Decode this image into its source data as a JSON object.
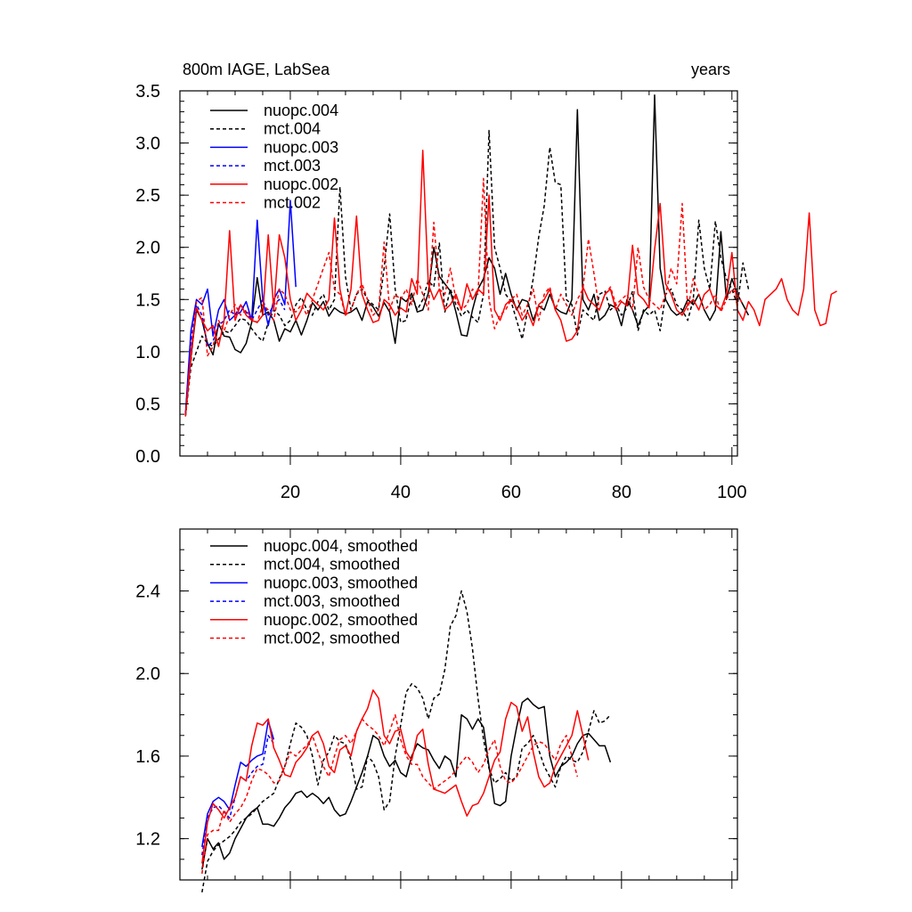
{
  "chart_data": [
    {
      "type": "line",
      "title": "800m IAGE, LabSea",
      "title_right": "years",
      "xlabel": "",
      "ylabel": "",
      "xlim": [
        0,
        101
      ],
      "ylim": [
        0,
        3.5
      ],
      "xticks": [
        20,
        40,
        60,
        80,
        100
      ],
      "yticks": [
        0.0,
        0.5,
        1.0,
        1.5,
        2.0,
        2.5,
        3.0,
        3.5
      ],
      "ytick_labels": [
        "0.0",
        "0.5",
        "1.0",
        "1.5",
        "2.0",
        "2.5",
        "3.0",
        "3.5"
      ],
      "legend_position": "top-left",
      "series": [
        {
          "name": "nuopc.004",
          "color": "#000000",
          "dashed": false,
          "start": 1,
          "values": [
            0.38,
            0.95,
            1.4,
            1.3,
            1.08,
            0.97,
            1.27,
            1.15,
            1.14,
            1.02,
            0.99,
            1.08,
            1.28,
            1.71,
            1.35,
            1.38,
            1.3,
            1.1,
            1.22,
            1.19,
            1.3,
            1.16,
            1.3,
            1.47,
            1.4,
            1.48,
            1.34,
            1.42,
            1.38,
            1.36,
            1.38,
            1.42,
            1.3,
            1.48,
            1.43,
            1.34,
            1.47,
            1.38,
            1.08,
            1.52,
            1.48,
            1.56,
            1.38,
            1.4,
            1.56,
            2.0,
            1.72,
            1.65,
            1.58,
            1.38,
            1.16,
            1.15,
            1.4,
            1.6,
            1.7,
            1.9,
            1.8,
            1.55,
            1.75,
            1.55,
            1.4,
            1.5,
            1.48,
            1.3,
            1.44,
            1.4,
            1.55,
            1.42,
            1.38,
            1.36,
            1.5,
            3.32,
            1.5,
            1.4,
            1.55,
            1.3,
            1.35,
            1.45,
            1.42,
            1.25,
            1.5,
            1.4,
            1.25,
            1.38,
            1.44,
            3.46,
            1.8,
            1.5,
            1.4,
            1.35,
            1.38,
            1.5,
            1.45,
            1.55,
            1.4,
            1.3,
            1.4,
            2.15,
            1.5,
            1.7,
            1.55,
            1.45,
            1.35
          ]
        },
        {
          "name": "mct.004",
          "color": "#000000",
          "dashed": true,
          "start": 1,
          "values": [
            0.38,
            0.85,
            1.0,
            1.15,
            1.08,
            1.05,
            1.12,
            1.2,
            1.18,
            1.25,
            1.32,
            1.3,
            1.22,
            1.15,
            1.1,
            1.28,
            1.4,
            1.35,
            1.25,
            1.3,
            1.45,
            1.52,
            1.4,
            1.35,
            1.48,
            1.55,
            1.4,
            1.5,
            2.58,
            1.72,
            1.4,
            1.55,
            1.6,
            1.5,
            1.45,
            1.4,
            1.8,
            2.32,
            1.6,
            1.28,
            1.3,
            1.55,
            1.4,
            1.5,
            1.68,
            1.62,
            2.04,
            1.38,
            1.6,
            1.45,
            1.34,
            1.4,
            1.33,
            1.28,
            1.55,
            3.12,
            2.0,
            1.8,
            1.55,
            1.48,
            1.3,
            1.12,
            1.4,
            1.7,
            2.1,
            2.4,
            2.96,
            2.62,
            2.6,
            1.5,
            1.45,
            1.16,
            1.4,
            1.35,
            1.3,
            1.55,
            1.58,
            1.4,
            1.45,
            1.35,
            1.42,
            1.58,
            1.2,
            1.4,
            1.35,
            1.4,
            1.2,
            1.55,
            1.6,
            1.45,
            1.4,
            1.3,
            1.5,
            2.26,
            1.8,
            1.6,
            2.25,
            1.9,
            1.7,
            1.6,
            1.45,
            1.85,
            1.6
          ]
        },
        {
          "name": "nuopc.003",
          "color": "#0000ff",
          "dashed": false,
          "start": 1,
          "values": [
            0.4,
            1.2,
            1.5,
            1.45,
            1.6,
            1.15,
            1.4,
            1.5,
            1.3,
            1.35,
            1.38,
            1.48,
            1.3,
            2.26,
            1.5,
            1.25,
            1.5,
            1.6,
            1.45,
            2.45,
            1.62
          ]
        },
        {
          "name": "mct.003",
          "color": "#0000ff",
          "dashed": true,
          "start": 1,
          "values": [
            0.4,
            1.1,
            1.45,
            1.35,
            1.05,
            1.1,
            1.25,
            1.3,
            1.4,
            1.35,
            1.45,
            1.38,
            1.3,
            1.4,
            1.5,
            1.35,
            1.45,
            1.5,
            1.4
          ]
        },
        {
          "name": "nuopc.002",
          "color": "#ff0000",
          "dashed": false,
          "start": 1,
          "values": [
            0.38,
            1.0,
            1.42,
            1.3,
            1.2,
            1.25,
            1.05,
            1.3,
            2.16,
            1.3,
            1.45,
            1.35,
            1.3,
            1.28,
            1.35,
            2.12,
            1.4,
            2.12,
            1.9,
            1.5,
            1.3,
            1.4,
            1.56,
            1.5,
            1.45,
            1.4,
            1.5,
            2.28,
            1.6,
            1.35,
            1.6,
            2.3,
            1.55,
            1.4,
            1.28,
            1.3,
            1.5,
            1.45,
            1.35,
            1.42,
            1.38,
            1.7,
            1.55,
            2.93,
            1.65,
            1.5,
            1.6,
            1.4,
            1.45,
            1.55,
            1.4,
            1.65,
            1.5,
            1.6,
            1.55,
            2.5,
            1.4,
            1.3,
            1.45,
            1.5,
            1.42,
            1.3,
            1.38,
            1.25,
            1.45,
            1.5,
            1.6,
            1.4,
            1.3,
            1.1,
            1.12,
            1.2,
            1.62,
            1.5,
            1.45,
            1.4,
            1.55,
            1.6,
            1.4,
            1.48,
            1.44,
            2.02,
            1.55,
            1.5,
            1.42,
            1.98,
            2.42,
            1.65,
            1.55,
            1.4,
            1.35,
            1.45,
            1.5,
            1.4,
            1.55,
            1.6,
            1.45,
            1.4,
            1.55,
            1.95,
            1.4,
            1.3,
            1.48,
            1.4,
            1.25,
            1.5,
            1.55,
            1.6,
            1.7,
            1.5,
            1.4,
            1.35,
            1.6,
            2.33,
            1.4,
            1.25,
            1.27,
            1.55,
            1.58
          ]
        },
        {
          "name": "mct.002",
          "color": "#ff0000",
          "dashed": true,
          "start": 1,
          "values": [
            0.38,
            0.9,
            1.48,
            1.52,
            0.96,
            1.05,
            1.3,
            1.2,
            1.35,
            1.45,
            1.35,
            1.4,
            1.32,
            1.28,
            1.45,
            1.4,
            1.3,
            1.6,
            1.55,
            1.4,
            1.38,
            1.45,
            1.35,
            1.5,
            1.65,
            1.8,
            1.95,
            1.6,
            1.55,
            1.35,
            1.4,
            1.55,
            1.65,
            1.5,
            1.35,
            1.4,
            2.05,
            1.4,
            1.55,
            1.5,
            1.6,
            1.45,
            1.7,
            1.55,
            1.4,
            2.24,
            1.6,
            1.55,
            1.8,
            1.5,
            1.4,
            1.45,
            1.6,
            1.55,
            2.66,
            1.5,
            1.22,
            1.35,
            1.4,
            1.5,
            1.55,
            1.35,
            1.45,
            1.6,
            1.3,
            1.55,
            1.62,
            1.4,
            1.55,
            1.45,
            1.35,
            1.5,
            1.6,
            2.08,
            1.75,
            1.4,
            1.55,
            1.62,
            1.45,
            1.5,
            1.55,
            1.4,
            2.0,
            1.62,
            1.5,
            1.45,
            1.4,
            1.55,
            1.8,
            1.65,
            2.42,
            1.4,
            1.7,
            1.55,
            1.4,
            1.45,
            1.55,
            1.38,
            1.5,
            1.6,
            1.55,
            1.45
          ]
        }
      ]
    },
    {
      "type": "line",
      "title": "",
      "xlabel": "",
      "ylabel": "",
      "xlim": [
        0,
        101
      ],
      "ylim": [
        1.0,
        2.7
      ],
      "xticks": [
        20,
        40,
        60,
        80,
        100
      ],
      "xtick_labels_shown": false,
      "yticks": [
        1.2,
        1.6,
        2.0,
        2.4
      ],
      "ytick_labels": [
        "1.2",
        "1.6",
        "2.0",
        "2.4"
      ],
      "legend_position": "top-left",
      "series": [
        {
          "name": "nuopc.004, smoothed",
          "color": "#000000",
          "dashed": false,
          "start": 4,
          "values": [
            1.05,
            1.2,
            1.15,
            1.18,
            1.1,
            1.13,
            1.2,
            1.25,
            1.3,
            1.33,
            1.35,
            1.27,
            1.27,
            1.26,
            1.3,
            1.35,
            1.38,
            1.42,
            1.43,
            1.4,
            1.42,
            1.4,
            1.37,
            1.4,
            1.34,
            1.31,
            1.32,
            1.38,
            1.45,
            1.52,
            1.6,
            1.7,
            1.68,
            1.6,
            1.55,
            1.58,
            1.52,
            1.5,
            1.6,
            1.66,
            1.64,
            1.63,
            1.58,
            1.54,
            1.6,
            1.58,
            1.5,
            1.8,
            1.78,
            1.73,
            1.78,
            1.74,
            1.55,
            1.37,
            1.36,
            1.38,
            1.6,
            1.74,
            1.86,
            1.88,
            1.85,
            1.83,
            1.84,
            1.6,
            1.5,
            1.55,
            1.57,
            1.6,
            1.66,
            1.7,
            1.71,
            1.68,
            1.65,
            1.65,
            1.57
          ]
        },
        {
          "name": "mct.004, smoothed",
          "color": "#000000",
          "dashed": true,
          "start": 4,
          "values": [
            0.94,
            1.09,
            1.14,
            1.17,
            1.19,
            1.21,
            1.24,
            1.28,
            1.3,
            1.32,
            1.35,
            1.38,
            1.4,
            1.42,
            1.49,
            1.55,
            1.66,
            1.76,
            1.74,
            1.7,
            1.6,
            1.46,
            1.58,
            1.62,
            1.7,
            1.67,
            1.66,
            1.58,
            1.44,
            1.45,
            1.6,
            1.57,
            1.5,
            1.34,
            1.38,
            1.6,
            1.75,
            1.91,
            1.95,
            1.93,
            1.88,
            1.78,
            1.88,
            1.9,
            2.02,
            2.23,
            2.28,
            2.4,
            2.3,
            2.12,
            1.88,
            1.68,
            1.54,
            1.47,
            1.49,
            1.52,
            1.48,
            1.5,
            1.64,
            1.66,
            1.7,
            1.63,
            1.55,
            1.5,
            1.45,
            1.55,
            1.6,
            1.58,
            1.57,
            1.62,
            1.72,
            1.82,
            1.76,
            1.77,
            1.8
          ]
        },
        {
          "name": "nuopc.003, smoothed",
          "color": "#0000ff",
          "dashed": false,
          "start": 4,
          "values": [
            1.16,
            1.32,
            1.38,
            1.4,
            1.38,
            1.34,
            1.46,
            1.57,
            1.55,
            1.58,
            1.6,
            1.61,
            1.77,
            1.68
          ]
        },
        {
          "name": "mct.003, smoothed",
          "color": "#0000ff",
          "dashed": true,
          "start": 4,
          "values": [
            1.12,
            1.3,
            1.35,
            1.36,
            1.33,
            1.3,
            1.4,
            1.5,
            1.48,
            1.52,
            1.55,
            1.56,
            1.7,
            1.66
          ]
        },
        {
          "name": "nuopc.002, smoothed",
          "color": "#ff0000",
          "dashed": false,
          "start": 4,
          "values": [
            1.08,
            1.28,
            1.37,
            1.34,
            1.3,
            1.35,
            1.4,
            1.5,
            1.48,
            1.65,
            1.76,
            1.75,
            1.78,
            1.64,
            1.58,
            1.51,
            1.5,
            1.57,
            1.6,
            1.64,
            1.7,
            1.72,
            1.66,
            1.55,
            1.52,
            1.63,
            1.65,
            1.6,
            1.72,
            1.78,
            1.83,
            1.92,
            1.88,
            1.7,
            1.66,
            1.72,
            1.73,
            1.62,
            1.58,
            1.7,
            1.73,
            1.56,
            1.44,
            1.43,
            1.42,
            1.44,
            1.46,
            1.38,
            1.31,
            1.36,
            1.37,
            1.42,
            1.5,
            1.58,
            1.62,
            1.78,
            1.86,
            1.84,
            1.72,
            1.79,
            1.62,
            1.5,
            1.45,
            1.47,
            1.55,
            1.6,
            1.65,
            1.7,
            1.82,
            1.7,
            1.58
          ]
        },
        {
          "name": "mct.002, smoothed",
          "color": "#ff0000",
          "dashed": true,
          "start": 4,
          "values": [
            1.03,
            1.22,
            1.24,
            1.24,
            1.34,
            1.28,
            1.32,
            1.35,
            1.4,
            1.48,
            1.54,
            1.53,
            1.51,
            1.47,
            1.48,
            1.55,
            1.62,
            1.6,
            1.63,
            1.65,
            1.7,
            1.62,
            1.55,
            1.5,
            1.6,
            1.68,
            1.7,
            1.66,
            1.72,
            1.78,
            1.75,
            1.73,
            1.7,
            1.65,
            1.72,
            1.8,
            1.68,
            1.6,
            1.56,
            1.56,
            1.5,
            1.47,
            1.44,
            1.46,
            1.48,
            1.5,
            1.53,
            1.57,
            1.6,
            1.57,
            1.52,
            1.56,
            1.63,
            1.68,
            1.55,
            1.48,
            1.47,
            1.5,
            1.55,
            1.6,
            1.65,
            1.67,
            1.66,
            1.62,
            1.58,
            1.66,
            1.7,
            1.6,
            1.5
          ]
        }
      ]
    }
  ]
}
